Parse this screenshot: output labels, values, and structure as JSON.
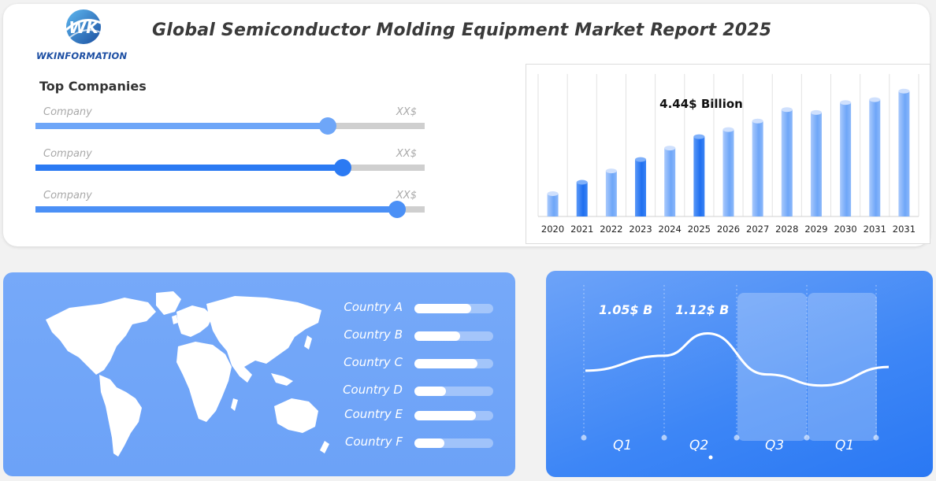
{
  "brand": {
    "logo_initials": "WK",
    "name": "WKINFORMATION"
  },
  "title": "Global Semiconductor Molding Equipment Market Report 2025",
  "top_companies": {
    "heading": "Top Companies",
    "items": [
      {
        "label": "Company",
        "value": "XX$",
        "level": 0.75,
        "color": "#6ea6f8"
      },
      {
        "label": "Company",
        "value": "XX$",
        "level": 0.79,
        "color": "#2b7af3"
      },
      {
        "label": "Company",
        "value": "XX$",
        "level": 0.93,
        "color": "#4b90f6"
      }
    ]
  },
  "chart_data": [
    {
      "type": "bar",
      "categories": [
        "2020",
        "2021",
        "2022",
        "2023",
        "2024",
        "2025",
        "2026",
        "2027",
        "2028",
        "2029",
        "2030",
        "2031",
        "2031"
      ],
      "values": [
        1.6,
        2.4,
        3.2,
        4.0,
        4.8,
        5.6,
        6.1,
        6.7,
        7.5,
        7.3,
        8.0,
        8.2,
        8.8
      ],
      "highlight": [
        1,
        3,
        5
      ],
      "annotation": "4.44$ Billion",
      "ylim": [
        0,
        10
      ],
      "grid": true
    },
    {
      "type": "line",
      "categories": [
        "Q1",
        "Q2",
        "Q3",
        "Q1"
      ],
      "x": [
        0,
        1,
        2,
        3,
        4,
        5
      ],
      "values": [
        1.02,
        1.06,
        1.12,
        1.01,
        0.98,
        1.03
      ],
      "annotations": [
        "1.05$ B",
        "1.12$ B"
      ]
    }
  ],
  "countries": [
    {
      "label": "Country A",
      "level": 0.72
    },
    {
      "label": "Country B",
      "level": 0.58
    },
    {
      "label": "Country C",
      "level": 0.8
    },
    {
      "label": "Country D",
      "level": 0.4
    },
    {
      "label": "Country E",
      "level": 0.78
    },
    {
      "label": "Country F",
      "level": 0.38
    }
  ],
  "colors": {
    "accent": "#2b7af3",
    "bar_light": "#7fb0fa",
    "panel": "#6ca2f7"
  }
}
